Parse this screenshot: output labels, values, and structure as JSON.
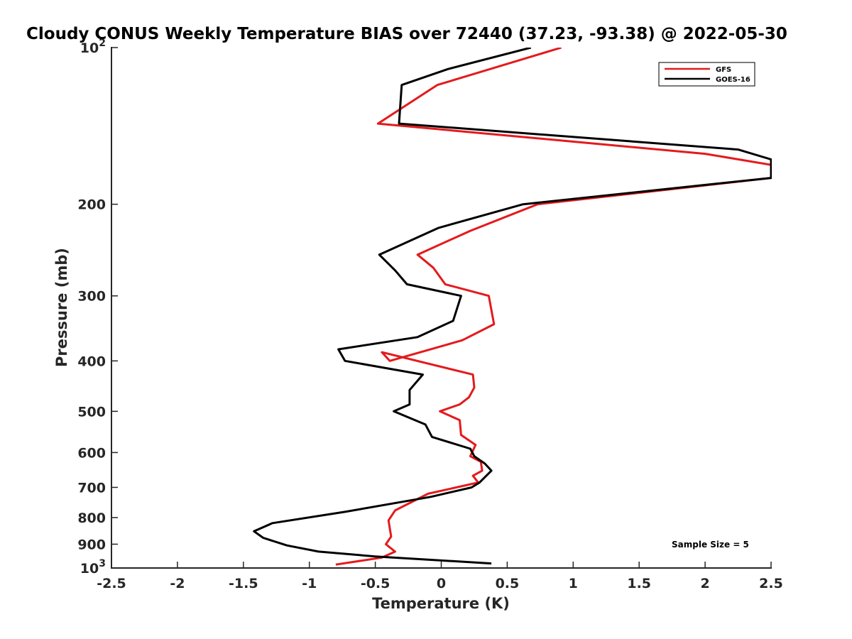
{
  "chart_data": {
    "type": "line",
    "title": "Cloudy CONUS Weekly Temperature BIAS over 72440 (37.23, -93.38) @ 2022-05-30",
    "xlabel": "Temperature (K)",
    "ylabel": "Pressure (mb)",
    "xlim": [
      -2.5,
      2.5
    ],
    "ylim": [
      100,
      1000
    ],
    "y_scale": "log",
    "y_reversed": true,
    "grid": false,
    "legend_position": "top-right",
    "x_ticks": [
      {
        "value": -2.5,
        "label": "-2.5"
      },
      {
        "value": -2,
        "label": "-2"
      },
      {
        "value": -1.5,
        "label": "-1.5"
      },
      {
        "value": -1,
        "label": "-1"
      },
      {
        "value": -0.5,
        "label": "-0.5"
      },
      {
        "value": 0,
        "label": "0"
      },
      {
        "value": 0.5,
        "label": "0.5"
      },
      {
        "value": 1,
        "label": "1"
      },
      {
        "value": 1.5,
        "label": "1.5"
      },
      {
        "value": 2,
        "label": "2"
      },
      {
        "value": 2.5,
        "label": "2.5"
      }
    ],
    "y_ticks": [
      {
        "value": 100,
        "base": "10",
        "exp": "2"
      },
      {
        "value": 200,
        "label": "200"
      },
      {
        "value": 300,
        "label": "300"
      },
      {
        "value": 400,
        "label": "400"
      },
      {
        "value": 500,
        "label": "500"
      },
      {
        "value": 600,
        "label": "600"
      },
      {
        "value": 700,
        "label": "700"
      },
      {
        "value": 800,
        "label": "800"
      },
      {
        "value": 900,
        "label": "900"
      },
      {
        "value": 1000,
        "base": "10",
        "exp": "3"
      }
    ],
    "annotation": "Sample Size = 5",
    "series": [
      {
        "name": "GFS",
        "color": "#e41a1c",
        "points": [
          [
            0.91,
            100
          ],
          [
            -0.03,
            118
          ],
          [
            -0.48,
            140
          ],
          [
            2.0,
            160
          ],
          [
            2.5,
            168
          ],
          [
            2.5,
            178
          ],
          [
            0.73,
            200
          ],
          [
            0.22,
            225
          ],
          [
            -0.18,
            250
          ],
          [
            -0.06,
            265
          ],
          [
            0.03,
            285
          ],
          [
            0.36,
            300
          ],
          [
            0.4,
            340
          ],
          [
            0.16,
            365
          ],
          [
            -0.39,
            400
          ],
          [
            -0.45,
            385
          ],
          [
            0.24,
            425
          ],
          [
            0.25,
            450
          ],
          [
            0.21,
            470
          ],
          [
            0.14,
            485
          ],
          [
            -0.01,
            500
          ],
          [
            0.14,
            520
          ],
          [
            0.15,
            555
          ],
          [
            0.26,
            580
          ],
          [
            0.22,
            610
          ],
          [
            0.3,
            625
          ],
          [
            0.31,
            650
          ],
          [
            0.24,
            665
          ],
          [
            0.28,
            685
          ],
          [
            -0.1,
            720
          ],
          [
            -0.35,
            775
          ],
          [
            -0.4,
            810
          ],
          [
            -0.38,
            870
          ],
          [
            -0.42,
            900
          ],
          [
            -0.35,
            930
          ],
          [
            -0.45,
            955
          ],
          [
            -0.8,
            985
          ]
        ]
      },
      {
        "name": "GOES-16",
        "color": "#000000",
        "points": [
          [
            0.68,
            100
          ],
          [
            0.05,
            110
          ],
          [
            -0.3,
            118
          ],
          [
            -0.32,
            140
          ],
          [
            2.25,
            157
          ],
          [
            2.5,
            164
          ],
          [
            2.5,
            178
          ],
          [
            0.62,
            200
          ],
          [
            -0.02,
            222
          ],
          [
            -0.47,
            250
          ],
          [
            -0.35,
            268
          ],
          [
            -0.26,
            285
          ],
          [
            0.15,
            300
          ],
          [
            0.09,
            335
          ],
          [
            -0.18,
            360
          ],
          [
            -0.78,
            380
          ],
          [
            -0.73,
            400
          ],
          [
            -0.14,
            425
          ],
          [
            -0.24,
            455
          ],
          [
            -0.24,
            485
          ],
          [
            -0.36,
            500
          ],
          [
            -0.12,
            530
          ],
          [
            -0.07,
            560
          ],
          [
            0.22,
            590
          ],
          [
            0.25,
            610
          ],
          [
            0.33,
            630
          ],
          [
            0.38,
            650
          ],
          [
            0.29,
            685
          ],
          [
            0.23,
            700
          ],
          [
            -0.08,
            730
          ],
          [
            -0.73,
            780
          ],
          [
            -1.28,
            820
          ],
          [
            -1.42,
            850
          ],
          [
            -1.35,
            875
          ],
          [
            -1.17,
            905
          ],
          [
            -0.93,
            930
          ],
          [
            -0.5,
            950
          ],
          [
            0.38,
            980
          ]
        ]
      }
    ]
  }
}
